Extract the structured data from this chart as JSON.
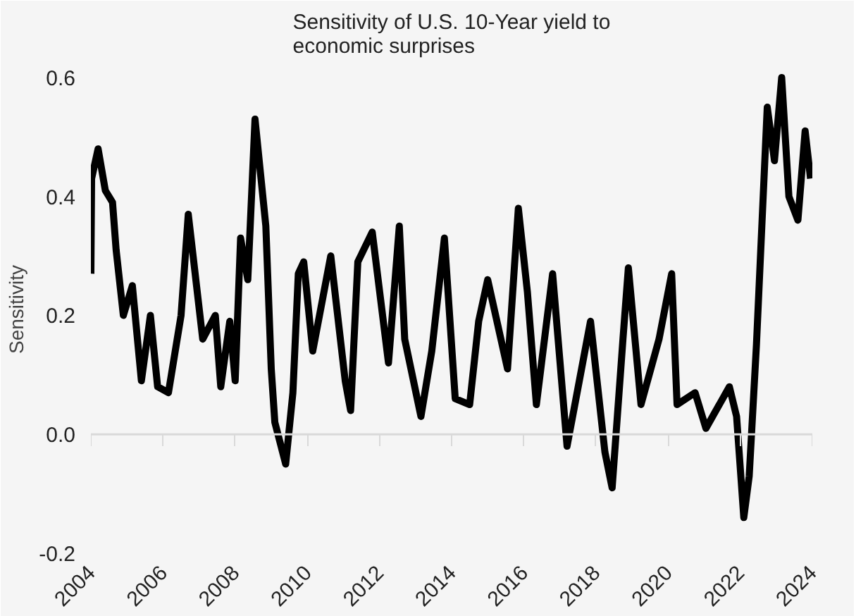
{
  "chart_data": {
    "type": "line",
    "title": "Sensitivity of U.S. 10-Year yield to economic surprises",
    "ylabel": "Sensitivity",
    "x": [
      2004.0,
      2004.02,
      2004.2,
      2004.4,
      2004.6,
      2004.7,
      2004.9,
      2005.15,
      2005.4,
      2005.65,
      2005.85,
      2006.15,
      2006.5,
      2006.7,
      2007.1,
      2007.45,
      2007.6,
      2007.85,
      2008.0,
      2008.15,
      2008.35,
      2008.55,
      2008.7,
      2008.85,
      2009.0,
      2009.1,
      2009.4,
      2009.6,
      2009.75,
      2009.9,
      2010.15,
      2010.65,
      2011.05,
      2011.2,
      2011.4,
      2011.8,
      2012.25,
      2012.55,
      2012.7,
      2013.15,
      2013.45,
      2013.8,
      2014.1,
      2014.5,
      2014.75,
      2015.0,
      2015.55,
      2015.85,
      2016.1,
      2016.35,
      2016.8,
      2017.2,
      2017.85,
      2018.25,
      2018.45,
      2018.75,
      2018.9,
      2019.25,
      2019.75,
      2020.1,
      2020.25,
      2020.75,
      2021.05,
      2021.7,
      2021.9,
      2022.1,
      2022.25,
      2022.45,
      2022.6,
      2022.75,
      2022.95,
      2023.15,
      2023.35,
      2023.6,
      2023.8,
      2023.95
    ],
    "series": [
      {
        "color": "#000000",
        "values": [
          0.27,
          0.43,
          0.48,
          0.41,
          0.39,
          0.31,
          0.2,
          0.25,
          0.09,
          0.2,
          0.08,
          0.07,
          0.2,
          0.37,
          0.16,
          0.2,
          0.08,
          0.19,
          0.09,
          0.33,
          0.26,
          0.53,
          0.44,
          0.35,
          0.11,
          0.02,
          -0.05,
          0.07,
          0.27,
          0.29,
          0.14,
          0.3,
          0.09,
          0.04,
          0.29,
          0.34,
          0.12,
          0.35,
          0.16,
          0.03,
          0.14,
          0.33,
          0.06,
          0.05,
          0.19,
          0.26,
          0.11,
          0.38,
          0.24,
          0.05,
          0.27,
          -0.02,
          0.19,
          -0.03,
          -0.09,
          0.16,
          0.28,
          0.05,
          0.16,
          0.27,
          0.05,
          0.07,
          0.01,
          0.08,
          0.03,
          -0.14,
          -0.07,
          0.15,
          0.35,
          0.55,
          0.46,
          0.6,
          0.4,
          0.36,
          0.51,
          0.43
        ]
      }
    ],
    "xlim": [
      2004,
      2024
    ],
    "xticks": [
      2004,
      2006,
      2008,
      2010,
      2012,
      2014,
      2016,
      2018,
      2020,
      2022,
      2024
    ],
    "ylim": [
      -0.2,
      0.62
    ],
    "yticks": [
      {
        "value": -0.2,
        "label": "-0.2"
      },
      {
        "value": 0,
        "label": "0.0"
      },
      {
        "value": 0.2,
        "label": "0.2"
      },
      {
        "value": 0.4,
        "label": "0.4"
      },
      {
        "value": 0.6,
        "label": "0.6"
      }
    ],
    "ref_lines": [
      {
        "axis": "y",
        "value": 0,
        "color": "#d9d9d9"
      }
    ],
    "grid": false,
    "marker": "none",
    "line_style": "solid"
  }
}
